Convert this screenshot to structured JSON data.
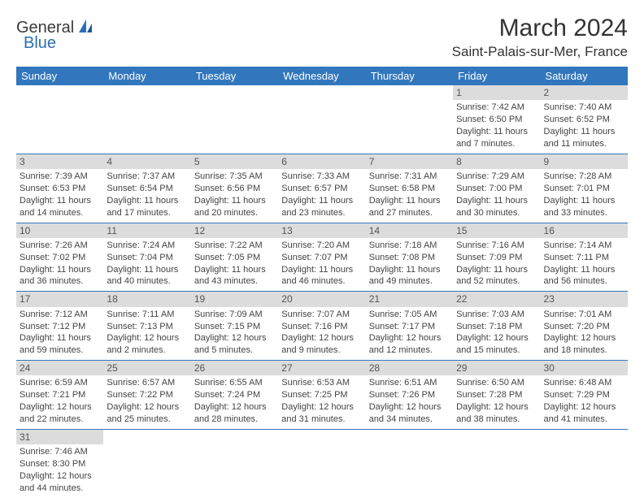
{
  "logo": {
    "general": "General",
    "blue": "Blue",
    "icon_color": "#2d6fb3"
  },
  "title": "March 2024",
  "location": "Saint-Palais-sur-Mer, France",
  "header_bg": "#3277bd",
  "header_text": "#ffffff",
  "daynum_bg": "#dcdcdc",
  "border_color": "#3277bd",
  "weekdays": [
    "Sunday",
    "Monday",
    "Tuesday",
    "Wednesday",
    "Thursday",
    "Friday",
    "Saturday"
  ],
  "weeks": [
    [
      null,
      null,
      null,
      null,
      null,
      {
        "n": "1",
        "sr": "Sunrise: 7:42 AM",
        "ss": "Sunset: 6:50 PM",
        "d1": "Daylight: 11 hours",
        "d2": "and 7 minutes."
      },
      {
        "n": "2",
        "sr": "Sunrise: 7:40 AM",
        "ss": "Sunset: 6:52 PM",
        "d1": "Daylight: 11 hours",
        "d2": "and 11 minutes."
      }
    ],
    [
      {
        "n": "3",
        "sr": "Sunrise: 7:39 AM",
        "ss": "Sunset: 6:53 PM",
        "d1": "Daylight: 11 hours",
        "d2": "and 14 minutes."
      },
      {
        "n": "4",
        "sr": "Sunrise: 7:37 AM",
        "ss": "Sunset: 6:54 PM",
        "d1": "Daylight: 11 hours",
        "d2": "and 17 minutes."
      },
      {
        "n": "5",
        "sr": "Sunrise: 7:35 AM",
        "ss": "Sunset: 6:56 PM",
        "d1": "Daylight: 11 hours",
        "d2": "and 20 minutes."
      },
      {
        "n": "6",
        "sr": "Sunrise: 7:33 AM",
        "ss": "Sunset: 6:57 PM",
        "d1": "Daylight: 11 hours",
        "d2": "and 23 minutes."
      },
      {
        "n": "7",
        "sr": "Sunrise: 7:31 AM",
        "ss": "Sunset: 6:58 PM",
        "d1": "Daylight: 11 hours",
        "d2": "and 27 minutes."
      },
      {
        "n": "8",
        "sr": "Sunrise: 7:29 AM",
        "ss": "Sunset: 7:00 PM",
        "d1": "Daylight: 11 hours",
        "d2": "and 30 minutes."
      },
      {
        "n": "9",
        "sr": "Sunrise: 7:28 AM",
        "ss": "Sunset: 7:01 PM",
        "d1": "Daylight: 11 hours",
        "d2": "and 33 minutes."
      }
    ],
    [
      {
        "n": "10",
        "sr": "Sunrise: 7:26 AM",
        "ss": "Sunset: 7:02 PM",
        "d1": "Daylight: 11 hours",
        "d2": "and 36 minutes."
      },
      {
        "n": "11",
        "sr": "Sunrise: 7:24 AM",
        "ss": "Sunset: 7:04 PM",
        "d1": "Daylight: 11 hours",
        "d2": "and 40 minutes."
      },
      {
        "n": "12",
        "sr": "Sunrise: 7:22 AM",
        "ss": "Sunset: 7:05 PM",
        "d1": "Daylight: 11 hours",
        "d2": "and 43 minutes."
      },
      {
        "n": "13",
        "sr": "Sunrise: 7:20 AM",
        "ss": "Sunset: 7:07 PM",
        "d1": "Daylight: 11 hours",
        "d2": "and 46 minutes."
      },
      {
        "n": "14",
        "sr": "Sunrise: 7:18 AM",
        "ss": "Sunset: 7:08 PM",
        "d1": "Daylight: 11 hours",
        "d2": "and 49 minutes."
      },
      {
        "n": "15",
        "sr": "Sunrise: 7:16 AM",
        "ss": "Sunset: 7:09 PM",
        "d1": "Daylight: 11 hours",
        "d2": "and 52 minutes."
      },
      {
        "n": "16",
        "sr": "Sunrise: 7:14 AM",
        "ss": "Sunset: 7:11 PM",
        "d1": "Daylight: 11 hours",
        "d2": "and 56 minutes."
      }
    ],
    [
      {
        "n": "17",
        "sr": "Sunrise: 7:12 AM",
        "ss": "Sunset: 7:12 PM",
        "d1": "Daylight: 11 hours",
        "d2": "and 59 minutes."
      },
      {
        "n": "18",
        "sr": "Sunrise: 7:11 AM",
        "ss": "Sunset: 7:13 PM",
        "d1": "Daylight: 12 hours",
        "d2": "and 2 minutes."
      },
      {
        "n": "19",
        "sr": "Sunrise: 7:09 AM",
        "ss": "Sunset: 7:15 PM",
        "d1": "Daylight: 12 hours",
        "d2": "and 5 minutes."
      },
      {
        "n": "20",
        "sr": "Sunrise: 7:07 AM",
        "ss": "Sunset: 7:16 PM",
        "d1": "Daylight: 12 hours",
        "d2": "and 9 minutes."
      },
      {
        "n": "21",
        "sr": "Sunrise: 7:05 AM",
        "ss": "Sunset: 7:17 PM",
        "d1": "Daylight: 12 hours",
        "d2": "and 12 minutes."
      },
      {
        "n": "22",
        "sr": "Sunrise: 7:03 AM",
        "ss": "Sunset: 7:18 PM",
        "d1": "Daylight: 12 hours",
        "d2": "and 15 minutes."
      },
      {
        "n": "23",
        "sr": "Sunrise: 7:01 AM",
        "ss": "Sunset: 7:20 PM",
        "d1": "Daylight: 12 hours",
        "d2": "and 18 minutes."
      }
    ],
    [
      {
        "n": "24",
        "sr": "Sunrise: 6:59 AM",
        "ss": "Sunset: 7:21 PM",
        "d1": "Daylight: 12 hours",
        "d2": "and 22 minutes."
      },
      {
        "n": "25",
        "sr": "Sunrise: 6:57 AM",
        "ss": "Sunset: 7:22 PM",
        "d1": "Daylight: 12 hours",
        "d2": "and 25 minutes."
      },
      {
        "n": "26",
        "sr": "Sunrise: 6:55 AM",
        "ss": "Sunset: 7:24 PM",
        "d1": "Daylight: 12 hours",
        "d2": "and 28 minutes."
      },
      {
        "n": "27",
        "sr": "Sunrise: 6:53 AM",
        "ss": "Sunset: 7:25 PM",
        "d1": "Daylight: 12 hours",
        "d2": "and 31 minutes."
      },
      {
        "n": "28",
        "sr": "Sunrise: 6:51 AM",
        "ss": "Sunset: 7:26 PM",
        "d1": "Daylight: 12 hours",
        "d2": "and 34 minutes."
      },
      {
        "n": "29",
        "sr": "Sunrise: 6:50 AM",
        "ss": "Sunset: 7:28 PM",
        "d1": "Daylight: 12 hours",
        "d2": "and 38 minutes."
      },
      {
        "n": "30",
        "sr": "Sunrise: 6:48 AM",
        "ss": "Sunset: 7:29 PM",
        "d1": "Daylight: 12 hours",
        "d2": "and 41 minutes."
      }
    ],
    [
      {
        "n": "31",
        "sr": "Sunrise: 7:46 AM",
        "ss": "Sunset: 8:30 PM",
        "d1": "Daylight: 12 hours",
        "d2": "and 44 minutes."
      },
      null,
      null,
      null,
      null,
      null,
      null
    ]
  ]
}
